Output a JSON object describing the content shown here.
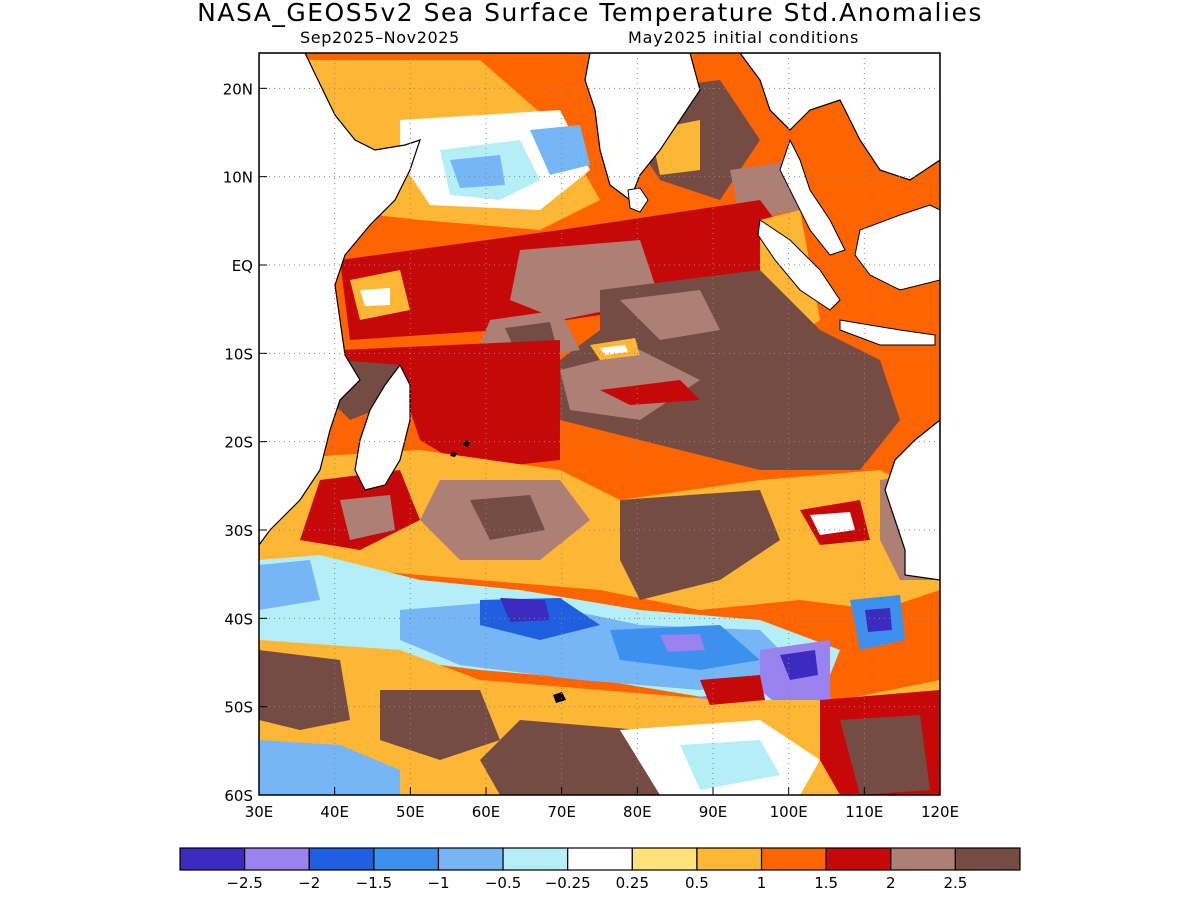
{
  "title": "NASA_GEOS5v2 Sea Surface Temperature Std.Anomalies",
  "subtitle_left": "Sep2025–Nov2025",
  "subtitle_right": "May2025 initial conditions",
  "map": {
    "region": "Indian Ocean",
    "lon_range": [
      30,
      120
    ],
    "lat_range": [
      -60,
      24
    ],
    "grid": "dotted",
    "lon_ticks": [
      "30E",
      "40E",
      "50E",
      "60E",
      "70E",
      "80E",
      "90E",
      "100E",
      "110E",
      "120E"
    ],
    "lat_ticks": [
      "20N",
      "10N",
      "EQ",
      "10S",
      "20S",
      "30S",
      "40S",
      "50S",
      "60S"
    ]
  },
  "colorbar": {
    "colors": [
      "#3b2bbf",
      "#9a82ef",
      "#1e60e0",
      "#3c91ee",
      "#76b5f6",
      "#b4eef6",
      "#ffffff",
      "#fee27a",
      "#fdb735",
      "#fe6400",
      "#c70808",
      "#ae7f74",
      "#744c44"
    ],
    "labels": [
      "−2.5",
      "−2",
      "−1.5",
      "−1",
      "−0.5",
      "−0.25",
      "0.25",
      "0.5",
      "1",
      "1.5",
      "2",
      "2.5"
    ]
  }
}
